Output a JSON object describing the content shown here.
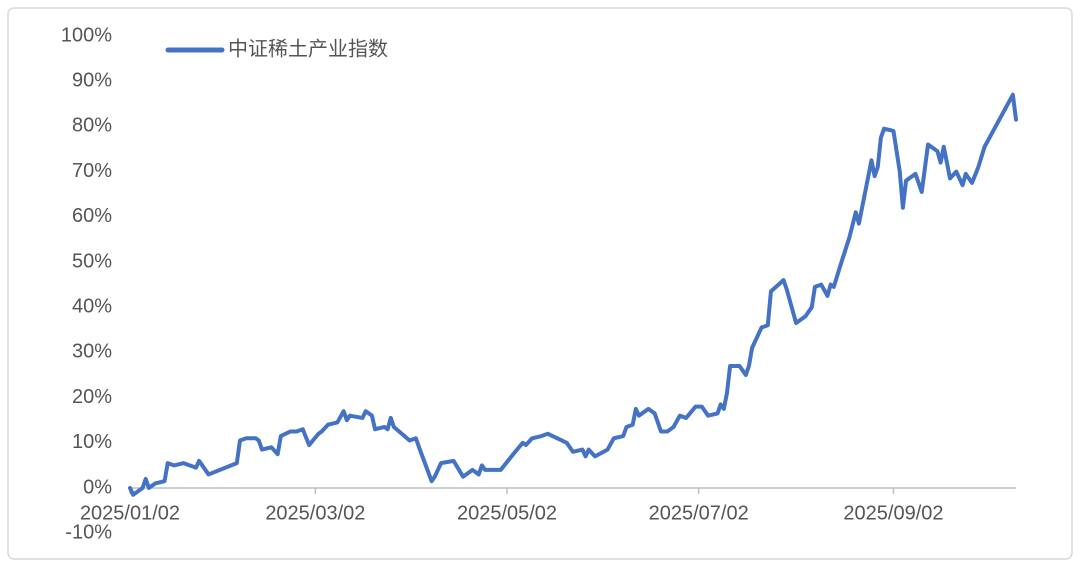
{
  "chart_data": {
    "type": "line",
    "x": [
      "2025/01/02",
      "2025/01/03",
      "2025/01/06",
      "2025/01/07",
      "2025/01/08",
      "2025/01/10",
      "2025/01/13",
      "2025/01/14",
      "2025/01/16",
      "2025/01/19",
      "2025/01/23",
      "2025/01/24",
      "2025/01/27",
      "2025/02/05",
      "2025/02/06",
      "2025/02/08",
      "2025/02/11",
      "2025/02/12",
      "2025/02/13",
      "2025/02/16",
      "2025/02/18",
      "2025/02/19",
      "2025/02/22",
      "2025/02/24",
      "2025/02/26",
      "2025/02/28",
      "2025/03/03",
      "2025/03/04",
      "2025/03/06",
      "2025/03/09",
      "2025/03/11",
      "2025/03/12",
      "2025/03/13",
      "2025/03/17",
      "2025/03/18",
      "2025/03/20",
      "2025/03/21",
      "2025/03/24",
      "2025/03/25",
      "2025/03/26",
      "2025/03/27",
      "2025/04/01",
      "2025/04/03",
      "2025/04/04",
      "2025/04/08",
      "2025/04/09",
      "2025/04/11",
      "2025/04/15",
      "2025/04/18",
      "2025/04/21",
      "2025/04/23",
      "2025/04/24",
      "2025/04/25",
      "2025/04/30",
      "2025/05/04",
      "2025/05/07",
      "2025/05/08",
      "2025/05/10",
      "2025/05/13",
      "2025/05/15",
      "2025/05/18",
      "2025/05/21",
      "2025/05/23",
      "2025/05/26",
      "2025/05/27",
      "2025/05/28",
      "2025/05/30",
      "2025/06/03",
      "2025/06/05",
      "2025/06/08",
      "2025/06/09",
      "2025/06/11",
      "2025/06/12",
      "2025/06/13",
      "2025/06/16",
      "2025/06/18",
      "2025/06/20",
      "2025/06/22",
      "2025/06/24",
      "2025/06/26",
      "2025/06/28",
      "2025/07/01",
      "2025/07/03",
      "2025/07/04",
      "2025/07/05",
      "2025/07/08",
      "2025/07/09",
      "2025/07/10",
      "2025/07/11",
      "2025/07/12",
      "2025/07/15",
      "2025/07/17",
      "2025/07/18",
      "2025/07/19",
      "2025/07/22",
      "2025/07/24",
      "2025/07/25",
      "2025/07/29",
      "2025/07/30",
      "2025/08/01",
      "2025/08/02",
      "2025/08/05",
      "2025/08/07",
      "2025/08/08",
      "2025/08/10",
      "2025/08/12",
      "2025/08/13",
      "2025/08/14",
      "2025/08/16",
      "2025/08/19",
      "2025/08/21",
      "2025/08/22",
      "2025/08/23",
      "2025/08/26",
      "2025/08/27",
      "2025/08/28",
      "2025/08/29",
      "2025/08/30",
      "2025/09/02",
      "2025/09/04",
      "2025/09/05",
      "2025/09/06",
      "2025/09/09",
      "2025/09/11",
      "2025/09/13",
      "2025/09/16",
      "2025/09/17",
      "2025/09/18",
      "2025/09/20",
      "2025/09/22",
      "2025/09/24",
      "2025/09/25",
      "2025/09/27",
      "2025/09/29",
      "2025/10/01",
      "2025/10/10",
      "2025/10/11"
    ],
    "series": [
      {
        "name": "中证稀土产业指数",
        "color": "#4472c4",
        "values": [
          0,
          -1.5,
          0,
          2,
          0,
          1,
          1.5,
          5.5,
          5,
          5.5,
          4.5,
          6,
          3,
          5.5,
          10.5,
          11,
          11,
          10.5,
          8.5,
          9,
          7.5,
          11.5,
          12.5,
          12.5,
          13,
          9.5,
          12,
          12.5,
          14,
          14.5,
          17,
          15,
          16,
          15.5,
          17,
          16,
          13,
          13.5,
          13,
          15.5,
          13.5,
          10.5,
          11,
          9,
          1.5,
          2.5,
          5.5,
          6,
          2.5,
          4,
          3,
          5,
          4,
          4,
          7.5,
          10,
          9.5,
          11,
          11.5,
          12,
          11,
          10,
          8,
          8.5,
          7,
          8.5,
          7,
          8.5,
          11,
          11.5,
          13.5,
          14,
          17.5,
          16,
          17.5,
          16.5,
          12.5,
          12.5,
          13.5,
          16,
          15.5,
          18,
          18,
          17,
          16,
          16.5,
          18.5,
          17.5,
          21,
          27,
          27,
          25,
          27,
          31,
          35.5,
          36,
          43.5,
          46,
          44,
          39,
          36.5,
          38,
          40,
          44.5,
          45,
          42.5,
          45,
          44.5,
          49,
          55.5,
          61,
          58.5,
          62,
          72.5,
          69,
          71,
          77.5,
          79.5,
          79,
          70,
          62,
          68,
          69.5,
          65.5,
          76,
          74.5,
          72,
          75.5,
          68.5,
          70,
          67,
          69.5,
          67.5,
          71,
          75.5,
          87,
          81.5
        ]
      }
    ],
    "xlim": [
      "2025/01/02",
      "2025/10/11"
    ],
    "xticks": [
      "2025/01/02",
      "2025/03/02",
      "2025/05/02",
      "2025/07/02",
      "2025/09/02"
    ],
    "ylim": [
      -10,
      100
    ],
    "yticks": [
      {
        "value": -10,
        "label": "-10%"
      },
      {
        "value": 0,
        "label": "0%"
      },
      {
        "value": 10,
        "label": "10%"
      },
      {
        "value": 20,
        "label": "20%"
      },
      {
        "value": 30,
        "label": "30%"
      },
      {
        "value": 40,
        "label": "40%"
      },
      {
        "value": 50,
        "label": "50%"
      },
      {
        "value": 60,
        "label": "60%"
      },
      {
        "value": 70,
        "label": "70%"
      },
      {
        "value": 80,
        "label": "80%"
      },
      {
        "value": 90,
        "label": "90%"
      },
      {
        "value": 100,
        "label": "100%"
      }
    ],
    "grid": false,
    "legend": "top-left"
  }
}
